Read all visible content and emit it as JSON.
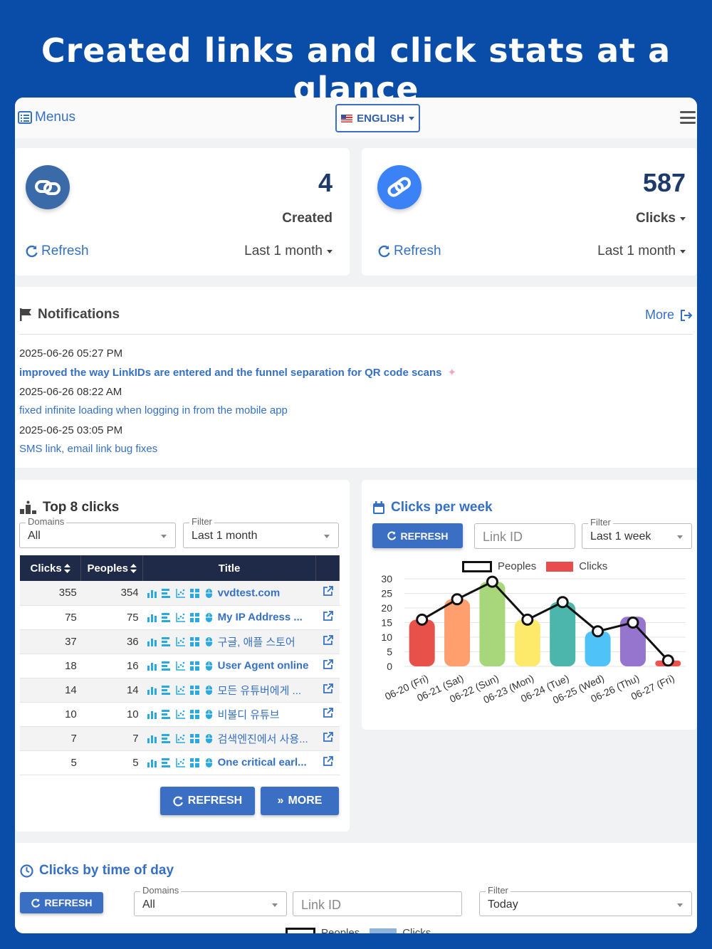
{
  "headline": "Created links and click stats at a glance",
  "topbar": {
    "menus_label": "Menus",
    "language": "ENGLISH"
  },
  "stats": [
    {
      "value": "4",
      "label": "Created",
      "refresh": "Refresh",
      "period": "Last 1 month",
      "color": "#3b6aa8",
      "label_dropdown": false
    },
    {
      "value": "587",
      "label": "Clicks",
      "refresh": "Refresh",
      "period": "Last 1 month",
      "color": "#3b82f6",
      "label_dropdown": true
    }
  ],
  "notifications": {
    "title": "Notifications",
    "more": "More",
    "items": [
      {
        "date": "2025-06-26 05:27 PM",
        "text": "improved the way LinkIDs are entered and the funnel separation for QR code scans",
        "bold": true
      },
      {
        "date": "2025-06-26 08:22 AM",
        "text": "fixed infinite loading when logging in from the mobile app",
        "bold": false
      },
      {
        "date": "2025-06-25 03:05 PM",
        "text": "SMS link, email link bug fixes",
        "bold": false
      }
    ]
  },
  "top_clicks": {
    "title": "Top 8 clicks",
    "domains_label": "Domains",
    "domains_value": "All",
    "filter_label": "Filter",
    "filter_value": "Last 1 month",
    "columns": [
      "Clicks",
      "Peoples",
      "Title"
    ],
    "rows": [
      {
        "clicks": "355",
        "peoples": "354",
        "title": "vvdtest.com",
        "bold": true
      },
      {
        "clicks": "75",
        "peoples": "75",
        "title": "My IP Address ...",
        "bold": true
      },
      {
        "clicks": "37",
        "peoples": "36",
        "title": "구글, 애플 스토어",
        "bold": false
      },
      {
        "clicks": "18",
        "peoples": "16",
        "title": "User Agent online",
        "bold": true
      },
      {
        "clicks": "14",
        "peoples": "14",
        "title": "모든 유튜버에게 ...",
        "bold": false
      },
      {
        "clicks": "10",
        "peoples": "10",
        "title": "비볼디 유튜브",
        "bold": false
      },
      {
        "clicks": "7",
        "peoples": "7",
        "title": "검색엔진에서 사용...",
        "bold": false
      },
      {
        "clicks": "5",
        "peoples": "5",
        "title": "One critical earl...",
        "bold": true
      }
    ],
    "refresh_button": "REFRESH",
    "more_button": "MORE"
  },
  "clicks_per_week": {
    "title": "Clicks per week",
    "refresh_button": "REFRESH",
    "link_id_placeholder": "Link ID",
    "filter_label": "Filter",
    "filter_value": "Last 1 week"
  },
  "chart_data": {
    "type": "bar",
    "categories": [
      "06-20 (Fri)",
      "06-21 (Sat)",
      "06-22 (Sun)",
      "06-23 (Mon)",
      "06-24 (Tue)",
      "06-25 (Wed)",
      "06-26 (Thu)",
      "06-27 (Fri)"
    ],
    "series": [
      {
        "name": "Peoples",
        "type": "line",
        "values": [
          16,
          23,
          29,
          16,
          22,
          12,
          15,
          2
        ]
      },
      {
        "name": "Clicks",
        "type": "bar",
        "values": [
          16,
          23,
          29,
          16,
          22,
          12,
          17,
          2
        ]
      }
    ],
    "bar_colors": [
      "#e8504a",
      "#ff9f6e",
      "#a8d67a",
      "#fde96a",
      "#4db6ac",
      "#4fc3f7",
      "#9575cd",
      "#ef5350"
    ],
    "y_ticks": [
      "0",
      "5",
      "10",
      "15",
      "20",
      "25",
      "30"
    ],
    "ylim": [
      0,
      30
    ],
    "legend": "top",
    "grid": true
  },
  "time_of_day": {
    "title": "Clicks by time of day",
    "refresh_button": "REFRESH",
    "domains_label": "Domains",
    "domains_value": "All",
    "link_id_placeholder": "Link ID",
    "filter_label": "Filter",
    "filter_value": "Today",
    "legend": [
      "Peoples",
      "Clicks"
    ]
  }
}
